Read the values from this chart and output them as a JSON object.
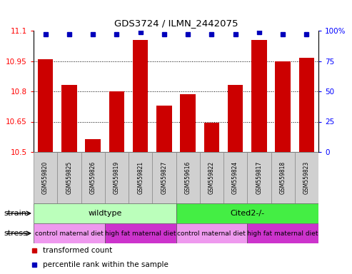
{
  "title": "GDS3724 / ILMN_2442075",
  "samples": [
    "GSM559820",
    "GSM559825",
    "GSM559826",
    "GSM559819",
    "GSM559821",
    "GSM559827",
    "GSM559616",
    "GSM559822",
    "GSM559824",
    "GSM559817",
    "GSM559818",
    "GSM559823"
  ],
  "bar_values": [
    10.96,
    10.83,
    10.565,
    10.8,
    11.055,
    10.73,
    10.785,
    10.645,
    10.83,
    11.055,
    10.95,
    10.965
  ],
  "dot_values": [
    97,
    97,
    97,
    97,
    99,
    97,
    97,
    97,
    97,
    99,
    97,
    97
  ],
  "ylim_left": [
    10.5,
    11.1
  ],
  "ylim_right": [
    0,
    100
  ],
  "yticks_left": [
    10.5,
    10.65,
    10.8,
    10.95,
    11.1
  ],
  "yticks_right": [
    0,
    25,
    50,
    75,
    100
  ],
  "bar_color": "#cc0000",
  "dot_color": "#0000bb",
  "bar_bottom": 10.5,
  "grid_ticks": [
    10.65,
    10.8,
    10.95
  ],
  "strain_labels": [
    {
      "text": "wildtype",
      "start": 0,
      "end": 6,
      "color": "#bbffbb"
    },
    {
      "text": "Cited2-/-",
      "start": 6,
      "end": 12,
      "color": "#44ee44"
    }
  ],
  "stress_labels": [
    {
      "text": "control maternal diet",
      "start": 0,
      "end": 3,
      "color": "#ee99ee"
    },
    {
      "text": "high fat maternal diet",
      "start": 3,
      "end": 6,
      "color": "#cc33cc"
    },
    {
      "text": "control maternal diet",
      "start": 6,
      "end": 9,
      "color": "#ee99ee"
    },
    {
      "text": "high fat maternal diet",
      "start": 9,
      "end": 12,
      "color": "#cc33cc"
    }
  ],
  "legend_items": [
    {
      "label": "transformed count",
      "color": "#cc0000"
    },
    {
      "label": "percentile rank within the sample",
      "color": "#0000bb"
    }
  ],
  "fig_width": 4.93,
  "fig_height": 3.84,
  "dpi": 100
}
